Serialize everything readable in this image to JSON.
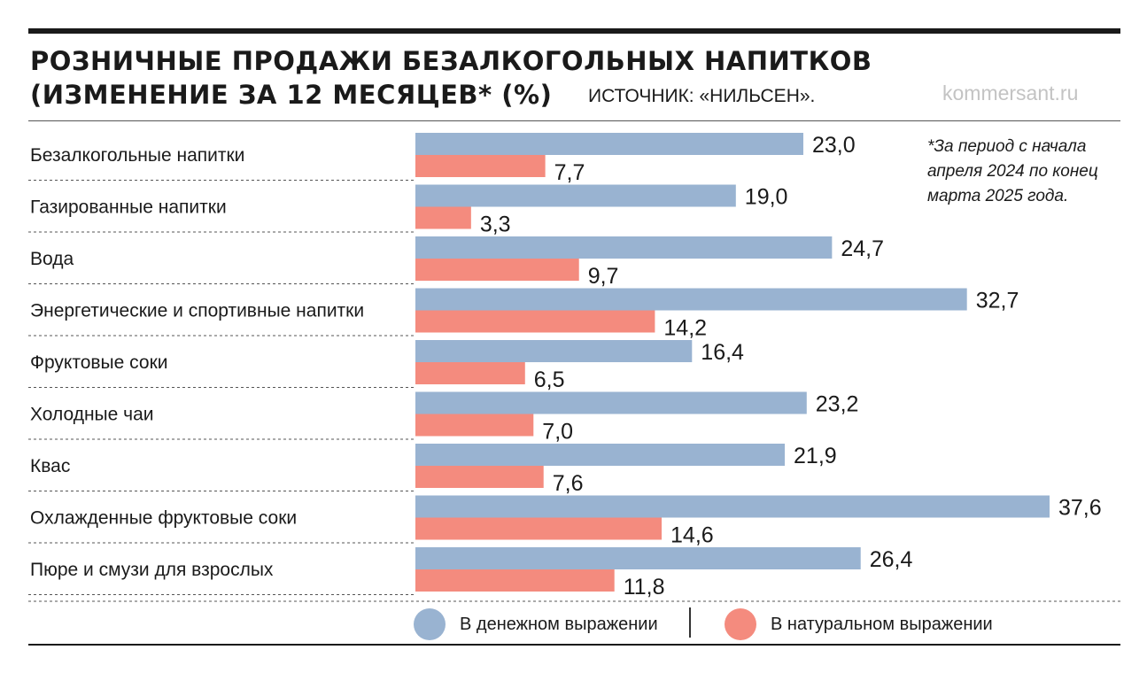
{
  "header": {
    "title_line1": "РОЗНИЧНЫЕ ПРОДАЖИ БЕЗАЛКОГОЛЬНЫХ НАПИТКОВ",
    "title_line2": "(ИЗМЕНЕНИЕ ЗА 12 МЕСЯЦЕВ* (%)",
    "source": "ИСТОЧНИК: «НИЛЬСЕН».",
    "brand": "kommersant.ru"
  },
  "footnote": "*За период с начала апреля 2024 по конец марта 2025 года.",
  "legend": {
    "money_label": "В денежном выражении",
    "volume_label": "В натуральном выражении"
  },
  "colors": {
    "money": "#99b3d1",
    "volume": "#f48b7e",
    "text": "#1a1a1a",
    "brand": "#c3c3c3"
  },
  "chart_data": {
    "type": "bar",
    "orientation": "horizontal",
    "categories": [
      "Безалкогольные напитки",
      "Газированные напитки",
      "Вода",
      "Энергетические и спортивные напитки",
      "Фруктовые соки",
      "Холодные чаи",
      "Квас",
      "Охлажденные фруктовые соки",
      "Пюре и смузи для взрослых"
    ],
    "series": [
      {
        "name": "В денежном выражении",
        "values": [
          23.0,
          19.0,
          24.7,
          32.7,
          16.4,
          23.2,
          21.9,
          37.6,
          26.4
        ],
        "labels": [
          "23,0",
          "19,0",
          "24,7",
          "32,7",
          "16,4",
          "23,2",
          "21,9",
          "37,6",
          "26,4"
        ]
      },
      {
        "name": "В натуральном выражении",
        "values": [
          7.7,
          3.3,
          9.7,
          14.2,
          6.5,
          7.0,
          7.6,
          14.6,
          11.8
        ],
        "labels": [
          "7,7",
          "3,3",
          "9,7",
          "14,2",
          "6,5",
          "7,0",
          "7,6",
          "14,6",
          "11,8"
        ]
      }
    ],
    "xlim": [
      0,
      37.6
    ],
    "grid": false,
    "legend_position": "bottom"
  }
}
